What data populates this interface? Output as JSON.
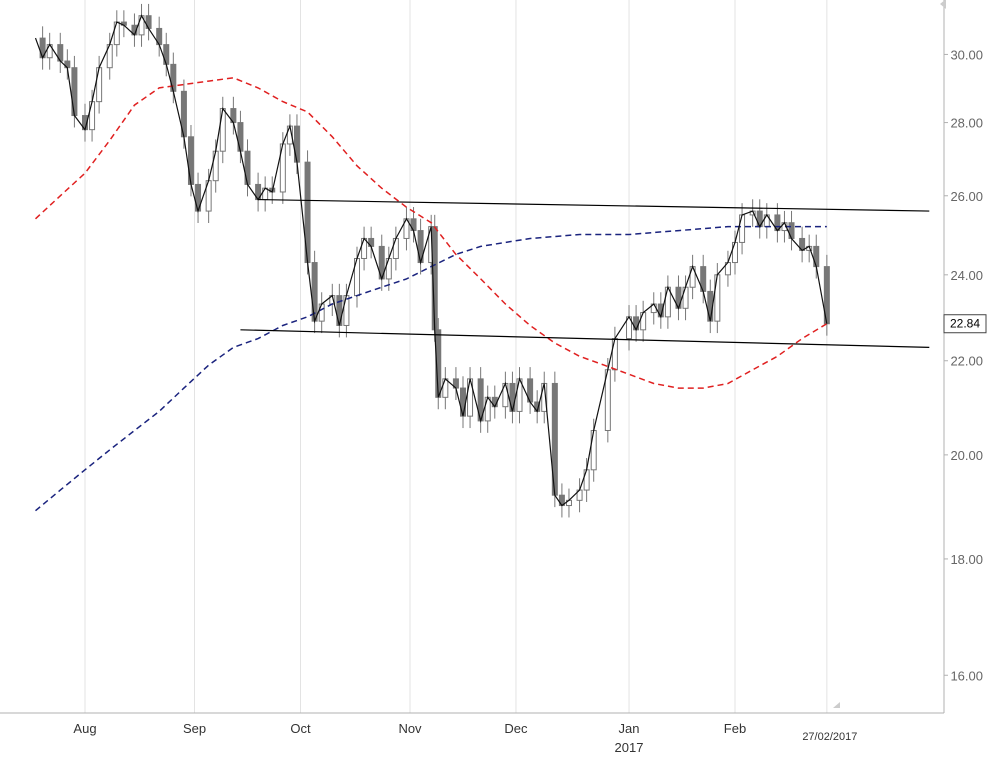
{
  "chart_data": {
    "type": "candlestick",
    "y_scale": "log",
    "ylim": [
      15.4,
      31.7
    ],
    "y_ticks": [
      16.0,
      18.0,
      20.0,
      22.0,
      24.0,
      26.0,
      28.0,
      30.0
    ],
    "y_tick_labels": [
      "16.00",
      "18.00",
      "20.00",
      "22.00",
      "24.00",
      "26.00",
      "28.00",
      "30.00"
    ],
    "x_months": [
      {
        "label": "Aug",
        "date": "2016-08-01"
      },
      {
        "label": "Sep",
        "date": "2016-09-01"
      },
      {
        "label": "Oct",
        "date": "2016-10-01"
      },
      {
        "label": "Nov",
        "date": "2016-11-01"
      },
      {
        "label": "Dec",
        "date": "2016-12-01"
      },
      {
        "label": "Jan",
        "date": "2017-01-02"
      },
      {
        "label": "Feb",
        "date": "2017-02-01"
      }
    ],
    "year_label": "2017",
    "date_marker": {
      "label": "27/02/2017",
      "date": "2017-02-27"
    },
    "last_price": {
      "label": "22.84",
      "value": 22.84
    },
    "grid": "vertical-only",
    "prices": [
      [
        "2016-07-18",
        30.5
      ],
      [
        "2016-07-20",
        29.9
      ],
      [
        "2016-07-22",
        30.3
      ],
      [
        "2016-07-25",
        29.8
      ],
      [
        "2016-07-27",
        29.6
      ],
      [
        "2016-07-29",
        28.2
      ],
      [
        "2016-08-01",
        27.8
      ],
      [
        "2016-08-03",
        28.6
      ],
      [
        "2016-08-05",
        29.6
      ],
      [
        "2016-08-08",
        30.3
      ],
      [
        "2016-08-10",
        31.0
      ],
      [
        "2016-08-12",
        30.9
      ],
      [
        "2016-08-15",
        30.6
      ],
      [
        "2016-08-17",
        31.2
      ],
      [
        "2016-08-19",
        30.8
      ],
      [
        "2016-08-22",
        30.3
      ],
      [
        "2016-08-24",
        29.7
      ],
      [
        "2016-08-26",
        28.9
      ],
      [
        "2016-08-29",
        27.6
      ],
      [
        "2016-08-31",
        26.3
      ],
      [
        "2016-09-02",
        25.6
      ],
      [
        "2016-09-05",
        26.4
      ],
      [
        "2016-09-07",
        27.2
      ],
      [
        "2016-09-09",
        28.4
      ],
      [
        "2016-09-12",
        28.0
      ],
      [
        "2016-09-14",
        27.2
      ],
      [
        "2016-09-16",
        26.3
      ],
      [
        "2016-09-19",
        25.9
      ],
      [
        "2016-09-21",
        26.2
      ],
      [
        "2016-09-23",
        26.1
      ],
      [
        "2016-09-26",
        27.4
      ],
      [
        "2016-09-28",
        27.9
      ],
      [
        "2016-09-30",
        26.9
      ],
      [
        "2016-10-03",
        24.3
      ],
      [
        "2016-10-05",
        22.9
      ],
      [
        "2016-10-07",
        23.3
      ],
      [
        "2016-10-10",
        23.5
      ],
      [
        "2016-10-12",
        22.8
      ],
      [
        "2016-10-14",
        23.5
      ],
      [
        "2016-10-17",
        24.4
      ],
      [
        "2016-10-19",
        24.9
      ],
      [
        "2016-10-21",
        24.7
      ],
      [
        "2016-10-24",
        23.9
      ],
      [
        "2016-10-26",
        24.4
      ],
      [
        "2016-10-28",
        24.9
      ],
      [
        "2016-10-31",
        25.4
      ],
      [
        "2016-11-02",
        25.1
      ],
      [
        "2016-11-04",
        24.3
      ],
      [
        "2016-11-07",
        25.2
      ],
      [
        "2016-11-08",
        22.7
      ],
      [
        "2016-11-09",
        21.2
      ],
      [
        "2016-11-11",
        21.6
      ],
      [
        "2016-11-14",
        21.4
      ],
      [
        "2016-11-16",
        20.8
      ],
      [
        "2016-11-18",
        21.6
      ],
      [
        "2016-11-21",
        20.7
      ],
      [
        "2016-11-23",
        21.2
      ],
      [
        "2016-11-25",
        21.0
      ],
      [
        "2016-11-28",
        21.5
      ],
      [
        "2016-11-30",
        20.9
      ],
      [
        "2016-12-02",
        21.6
      ],
      [
        "2016-12-05",
        21.1
      ],
      [
        "2016-12-07",
        20.9
      ],
      [
        "2016-12-09",
        21.5
      ],
      [
        "2016-12-12",
        19.2
      ],
      [
        "2016-12-14",
        19.0
      ],
      [
        "2016-12-16",
        19.1
      ],
      [
        "2016-12-19",
        19.3
      ],
      [
        "2016-12-21",
        19.7
      ],
      [
        "2016-12-23",
        20.5
      ],
      [
        "2016-12-27",
        21.8
      ],
      [
        "2016-12-29",
        22.5
      ],
      [
        "2017-01-02",
        23.0
      ],
      [
        "2017-01-04",
        22.7
      ],
      [
        "2017-01-06",
        23.1
      ],
      [
        "2017-01-09",
        23.3
      ],
      [
        "2017-01-11",
        23.0
      ],
      [
        "2017-01-13",
        23.7
      ],
      [
        "2017-01-16",
        23.2
      ],
      [
        "2017-01-18",
        23.7
      ],
      [
        "2017-01-20",
        24.2
      ],
      [
        "2017-01-23",
        23.6
      ],
      [
        "2017-01-25",
        22.9
      ],
      [
        "2017-01-27",
        24.0
      ],
      [
        "2017-01-30",
        24.3
      ],
      [
        "2017-02-01",
        24.8
      ],
      [
        "2017-02-03",
        25.5
      ],
      [
        "2017-02-06",
        25.6
      ],
      [
        "2017-02-08",
        25.2
      ],
      [
        "2017-02-10",
        25.5
      ],
      [
        "2017-02-13",
        25.1
      ],
      [
        "2017-02-15",
        25.3
      ],
      [
        "2017-02-17",
        24.9
      ],
      [
        "2017-02-20",
        24.6
      ],
      [
        "2017-02-22",
        24.7
      ],
      [
        "2017-02-24",
        24.2
      ],
      [
        "2017-02-27",
        22.84
      ]
    ],
    "ma_short": [
      [
        "2016-07-18",
        25.4
      ],
      [
        "2016-07-25",
        26.0
      ],
      [
        "2016-08-01",
        26.6
      ],
      [
        "2016-08-08",
        27.5
      ],
      [
        "2016-08-15",
        28.5
      ],
      [
        "2016-08-22",
        29.0
      ],
      [
        "2016-08-29",
        29.1
      ],
      [
        "2016-09-05",
        29.2
      ],
      [
        "2016-09-12",
        29.3
      ],
      [
        "2016-09-19",
        29.0
      ],
      [
        "2016-09-26",
        28.6
      ],
      [
        "2016-10-03",
        28.3
      ],
      [
        "2016-10-10",
        27.6
      ],
      [
        "2016-10-17",
        26.8
      ],
      [
        "2016-10-24",
        26.2
      ],
      [
        "2016-10-31",
        25.7
      ],
      [
        "2016-11-07",
        25.3
      ],
      [
        "2016-11-14",
        24.5
      ],
      [
        "2016-11-21",
        23.9
      ],
      [
        "2016-11-28",
        23.3
      ],
      [
        "2016-12-05",
        22.8
      ],
      [
        "2016-12-12",
        22.4
      ],
      [
        "2016-12-19",
        22.1
      ],
      [
        "2016-12-26",
        21.9
      ],
      [
        "2017-01-02",
        21.7
      ],
      [
        "2017-01-09",
        21.5
      ],
      [
        "2017-01-16",
        21.4
      ],
      [
        "2017-01-23",
        21.4
      ],
      [
        "2017-01-30",
        21.5
      ],
      [
        "2017-02-06",
        21.8
      ],
      [
        "2017-02-13",
        22.1
      ],
      [
        "2017-02-20",
        22.5
      ],
      [
        "2017-02-27",
        22.84
      ]
    ],
    "ma_long": [
      [
        "2016-07-18",
        18.9
      ],
      [
        "2016-07-25",
        19.3
      ],
      [
        "2016-08-01",
        19.7
      ],
      [
        "2016-08-08",
        20.1
      ],
      [
        "2016-08-15",
        20.5
      ],
      [
        "2016-08-22",
        20.9
      ],
      [
        "2016-08-29",
        21.4
      ],
      [
        "2016-09-05",
        21.9
      ],
      [
        "2016-09-12",
        22.3
      ],
      [
        "2016-09-19",
        22.5
      ],
      [
        "2016-09-26",
        22.8
      ],
      [
        "2016-10-03",
        23.0
      ],
      [
        "2016-10-10",
        23.3
      ],
      [
        "2016-10-17",
        23.5
      ],
      [
        "2016-10-24",
        23.7
      ],
      [
        "2016-10-31",
        23.9
      ],
      [
        "2016-11-07",
        24.2
      ],
      [
        "2016-11-14",
        24.5
      ],
      [
        "2016-11-21",
        24.7
      ],
      [
        "2016-11-28",
        24.8
      ],
      [
        "2016-12-05",
        24.9
      ],
      [
        "2016-12-12",
        24.95
      ],
      [
        "2016-12-19",
        25.0
      ],
      [
        "2016-12-26",
        25.0
      ],
      [
        "2017-01-02",
        25.0
      ],
      [
        "2017-01-09",
        25.05
      ],
      [
        "2017-01-16",
        25.1
      ],
      [
        "2017-01-23",
        25.15
      ],
      [
        "2017-01-30",
        25.2
      ],
      [
        "2017-02-06",
        25.2
      ],
      [
        "2017-02-13",
        25.2
      ],
      [
        "2017-02-20",
        25.2
      ],
      [
        "2017-02-27",
        25.2
      ]
    ],
    "trendlines": [
      {
        "from": [
          "2016-09-19",
          25.9
        ],
        "to": [
          "2017-03-28",
          25.6
        ]
      },
      {
        "from": [
          "2016-09-14",
          22.7
        ],
        "to": [
          "2017-03-28",
          22.3
        ]
      }
    ],
    "colors": {
      "candle": "#777777",
      "price_line": "#111111",
      "ma_short": "#e02020",
      "ma_long": "#1a237e",
      "trendline": "#000000",
      "grid": "#e3e3e3",
      "axis": "#b0b0b0"
    }
  }
}
